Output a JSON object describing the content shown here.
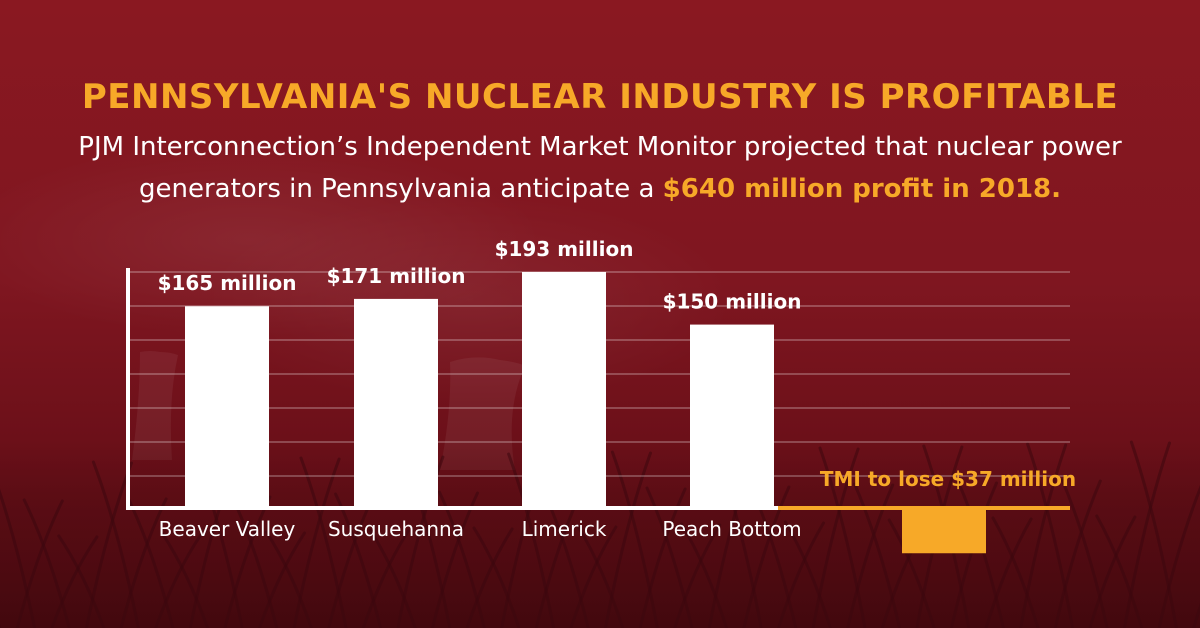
{
  "header": {
    "title": "PENNSYLVANIA'S NUCLEAR INDUSTRY IS PROFITABLE",
    "subtitle_prefix": "PJM Interconnection’s Independent Market Monitor projected that nuclear power generators in Pennsylvania anticipate a ",
    "subtitle_highlight": "$640 million profit in 2018."
  },
  "colors": {
    "background": "#7d141c",
    "accent": "#f7a928",
    "bars": "#ffffff",
    "negative_bar": "#f7a928"
  },
  "chart_data": {
    "type": "bar",
    "title": "",
    "xlabel": "",
    "ylabel": "",
    "ylim": [
      -37,
      193
    ],
    "grid": true,
    "categories": [
      "Beaver Valley",
      "Susquehanna",
      "Limerick",
      "Peach Bottom",
      "TMI"
    ],
    "category_labels": [
      "Beaver Valley",
      "Susquehanna",
      "Limerick",
      "Peach Bottom",
      ""
    ],
    "values": [
      165,
      171,
      193,
      150,
      -37
    ],
    "data_labels": [
      "$165 million",
      "$171 million",
      "$193 million",
      "$150 million",
      "TMI to lose $37 million"
    ],
    "unit": "million USD"
  }
}
